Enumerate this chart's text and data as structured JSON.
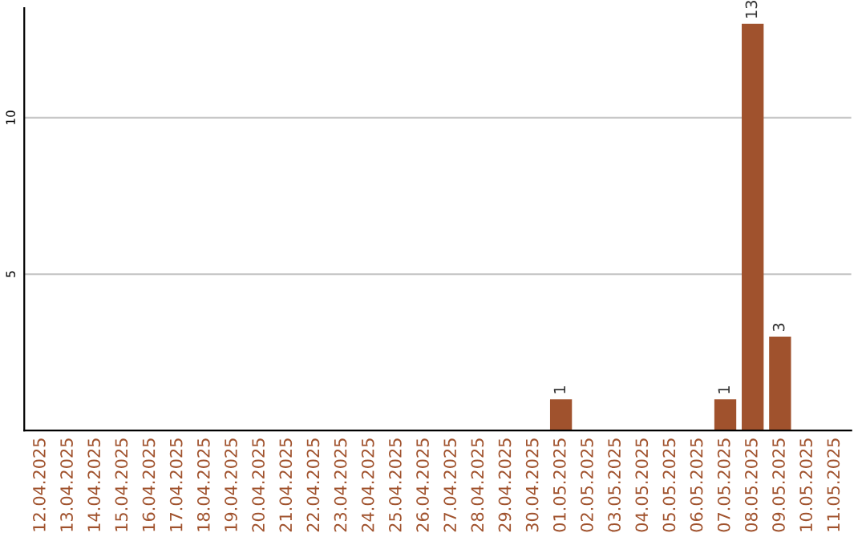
{
  "chart_data": {
    "type": "bar",
    "categories": [
      "12.04.2025",
      "13.04.2025",
      "14.04.2025",
      "15.04.2025",
      "16.04.2025",
      "17.04.2025",
      "18.04.2025",
      "19.04.2025",
      "20.04.2025",
      "21.04.2025",
      "22.04.2025",
      "23.04.2025",
      "24.04.2025",
      "25.04.2025",
      "26.04.2025",
      "27.04.2025",
      "28.04.2025",
      "29.04.2025",
      "30.04.2025",
      "01.05.2025",
      "02.05.2025",
      "03.05.2025",
      "04.05.2025",
      "05.05.2025",
      "06.05.2025",
      "07.05.2025",
      "08.05.2025",
      "09.05.2025",
      "10.05.2025",
      "11.05.2025"
    ],
    "values": [
      0,
      0,
      0,
      0,
      0,
      0,
      0,
      0,
      0,
      0,
      0,
      0,
      0,
      0,
      0,
      0,
      0,
      0,
      0,
      1,
      0,
      0,
      0,
      0,
      0,
      1,
      13,
      3,
      0,
      0
    ],
    "value_labels": [
      null,
      null,
      null,
      null,
      null,
      null,
      null,
      null,
      null,
      null,
      null,
      null,
      null,
      null,
      null,
      null,
      null,
      null,
      null,
      "1",
      null,
      null,
      null,
      null,
      null,
      "1",
      "13",
      "3",
      null,
      null
    ],
    "color": "#a0522d",
    "ylim": [
      0,
      13.5
    ],
    "yticks": [
      5,
      10
    ],
    "grid": "y"
  }
}
